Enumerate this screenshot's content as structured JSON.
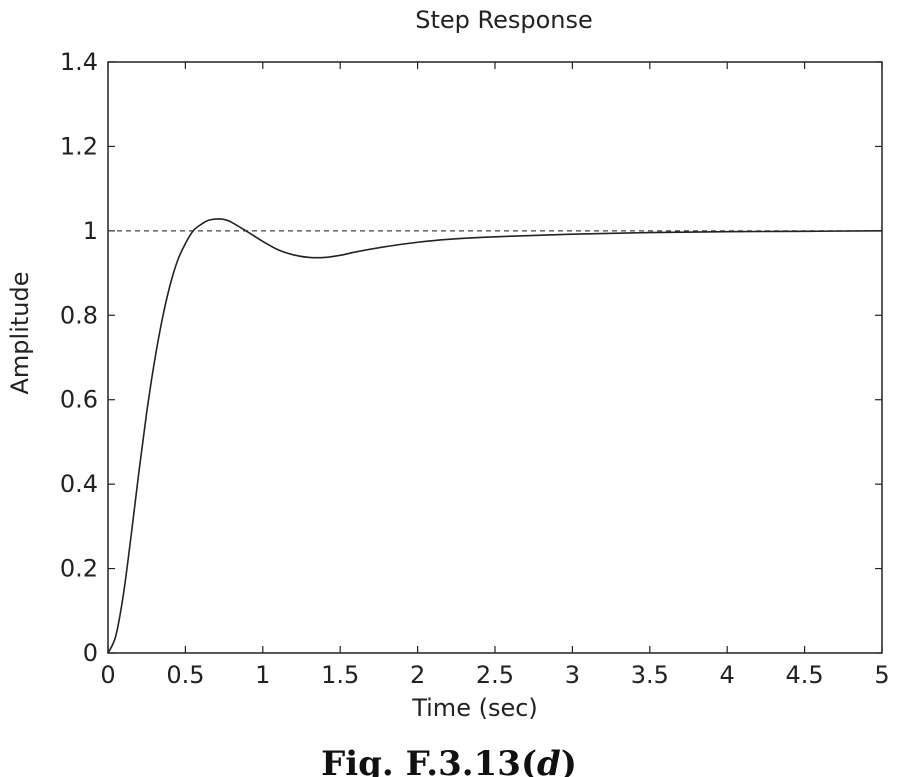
{
  "chart_data": {
    "type": "line",
    "title": "Step Response",
    "xlabel": "Time (sec)",
    "ylabel": "Amplitude",
    "xlim": [
      0,
      5
    ],
    "ylim": [
      0,
      1.4
    ],
    "xticks": [
      0,
      0.5,
      1,
      1.5,
      2,
      2.5,
      3,
      3.5,
      4,
      4.5,
      5
    ],
    "xtick_labels": [
      "0",
      "0.5",
      "1",
      "1.5",
      "2",
      "2.5",
      "3",
      "3.5",
      "4",
      "4.5",
      "5"
    ],
    "yticks": [
      0,
      0.2,
      0.4,
      0.6,
      0.8,
      1,
      1.2,
      1.4
    ],
    "ytick_labels": [
      "0",
      "0.2",
      "0.4",
      "0.6",
      "0.8",
      "1",
      "1.2",
      "1.4"
    ],
    "grid": false,
    "reference_line": {
      "y": 1,
      "style": "dashed"
    },
    "series": [
      {
        "x": [
          0,
          0.05,
          0.1,
          0.15,
          0.2,
          0.25,
          0.3,
          0.35,
          0.4,
          0.45,
          0.5,
          0.55,
          0.6,
          0.65,
          0.7,
          0.75,
          0.8,
          0.9,
          1.0,
          1.1,
          1.2,
          1.3,
          1.4,
          1.5,
          1.6,
          1.8,
          2.0,
          2.2,
          2.5,
          3.0,
          3.5,
          4.0,
          4.5,
          5.0
        ],
        "values": [
          0,
          0.04,
          0.14,
          0.28,
          0.43,
          0.57,
          0.69,
          0.79,
          0.87,
          0.93,
          0.97,
          1.0,
          1.015,
          1.025,
          1.028,
          1.027,
          1.02,
          0.998,
          0.975,
          0.955,
          0.943,
          0.937,
          0.937,
          0.942,
          0.95,
          0.963,
          0.973,
          0.98,
          0.986,
          0.992,
          0.996,
          0.998,
          0.999,
          1.0
        ]
      }
    ]
  },
  "caption": {
    "prefix": "Fig. F.3.13(",
    "italic": "d",
    "suffix": ")"
  }
}
